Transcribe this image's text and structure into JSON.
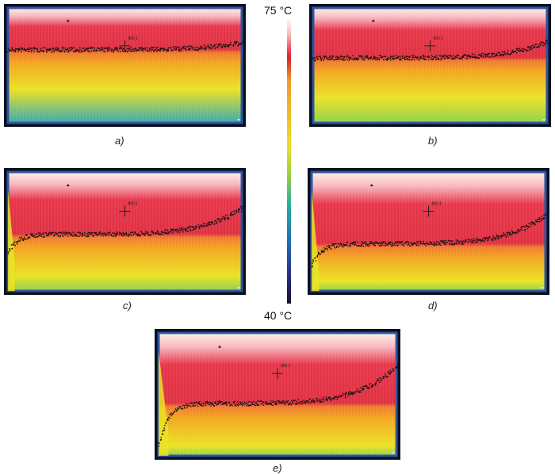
{
  "scale": {
    "max_label": "75 °C",
    "min_label": "40 °C"
  },
  "marker_label": "800 1",
  "panels": [
    {
      "id": "a",
      "caption": "a)",
      "front_level": 0.36,
      "lift": 0.0,
      "rise": 0.06
    },
    {
      "id": "b",
      "caption": "b)",
      "front_level": 0.43,
      "lift": 0.02,
      "rise": 0.14
    },
    {
      "id": "c",
      "caption": "c)",
      "front_level": 0.52,
      "lift": 0.25,
      "rise": 0.22
    },
    {
      "id": "d",
      "caption": "d)",
      "front_level": 0.6,
      "lift": 0.3,
      "rise": 0.24
    },
    {
      "id": "e",
      "caption": "e)",
      "front_level": 0.57,
      "lift": 0.55,
      "rise": 0.3
    }
  ],
  "colors": {
    "hot": "#fff0e6",
    "red": "#e8364a",
    "orange": "#f3a620",
    "yellow": "#eae324",
    "green": "#8fd14a",
    "cold_edge": "#2d53a0",
    "frame": "#0a0f1f"
  }
}
